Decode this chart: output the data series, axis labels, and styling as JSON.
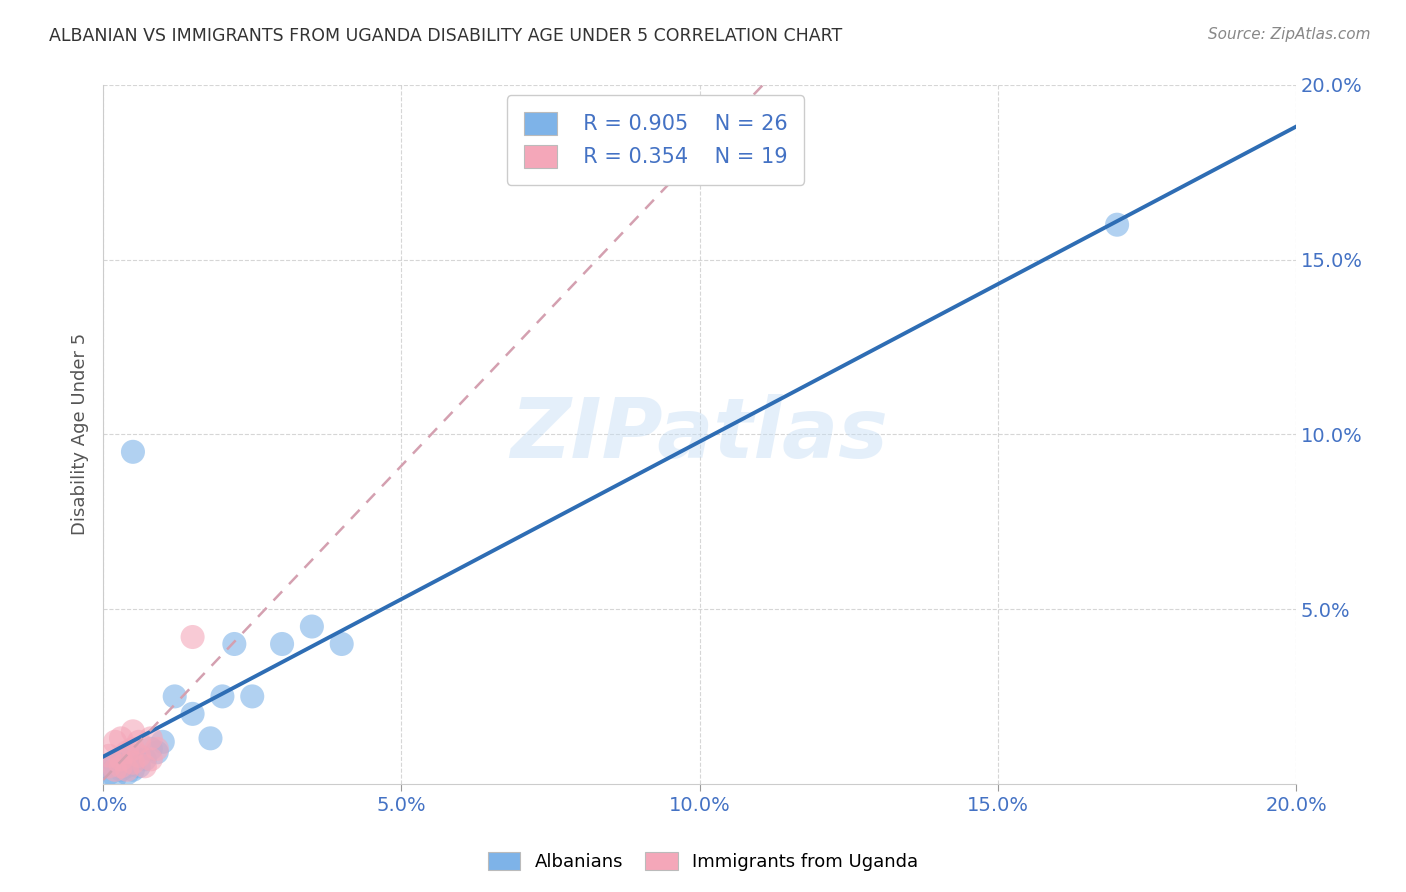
{
  "title": "ALBANIAN VS IMMIGRANTS FROM UGANDA DISABILITY AGE UNDER 5 CORRELATION CHART",
  "source": "Source: ZipAtlas.com",
  "ylabel": "Disability Age Under 5",
  "xlim": [
    0.0,
    0.2
  ],
  "ylim": [
    0.0,
    0.2
  ],
  "xticks": [
    0.0,
    0.05,
    0.1,
    0.15,
    0.2
  ],
  "yticks": [
    0.05,
    0.1,
    0.15,
    0.2
  ],
  "title_color": "#333333",
  "axis_color": "#4472c4",
  "watermark": "ZIPatlas",
  "legend_R1": "R = 0.905",
  "legend_N1": "N = 26",
  "legend_R2": "R = 0.354",
  "legend_N2": "N = 19",
  "color_albanian": "#7eb3e8",
  "color_ugandan": "#f4a7b9",
  "line_albanian": "#2e6db4",
  "line_ugandan": "#d4a0b0",
  "albanian_x": [
    0.001,
    0.001,
    0.002,
    0.002,
    0.003,
    0.003,
    0.004,
    0.004,
    0.005,
    0.005,
    0.006,
    0.007,
    0.008,
    0.009,
    0.01,
    0.012,
    0.015,
    0.018,
    0.02,
    0.022,
    0.025,
    0.03,
    0.035,
    0.04,
    0.17,
    0.005
  ],
  "albanian_y": [
    0.003,
    0.005,
    0.002,
    0.006,
    0.004,
    0.007,
    0.003,
    0.005,
    0.004,
    0.008,
    0.005,
    0.007,
    0.01,
    0.009,
    0.012,
    0.025,
    0.02,
    0.013,
    0.025,
    0.04,
    0.025,
    0.04,
    0.045,
    0.04,
    0.16,
    0.095
  ],
  "ugandan_x": [
    0.001,
    0.001,
    0.002,
    0.002,
    0.003,
    0.003,
    0.003,
    0.004,
    0.004,
    0.005,
    0.005,
    0.005,
    0.006,
    0.006,
    0.007,
    0.008,
    0.008,
    0.009,
    0.015
  ],
  "ugandan_y": [
    0.005,
    0.008,
    0.004,
    0.012,
    0.005,
    0.007,
    0.013,
    0.004,
    0.009,
    0.006,
    0.01,
    0.015,
    0.008,
    0.012,
    0.005,
    0.007,
    0.013,
    0.01,
    0.042
  ],
  "alb_line_x": [
    0.0,
    0.2
  ],
  "alb_line_y": [
    0.0,
    0.174
  ],
  "uga_line_x": [
    0.0,
    0.2
  ],
  "uga_line_y": [
    0.002,
    0.2
  ]
}
